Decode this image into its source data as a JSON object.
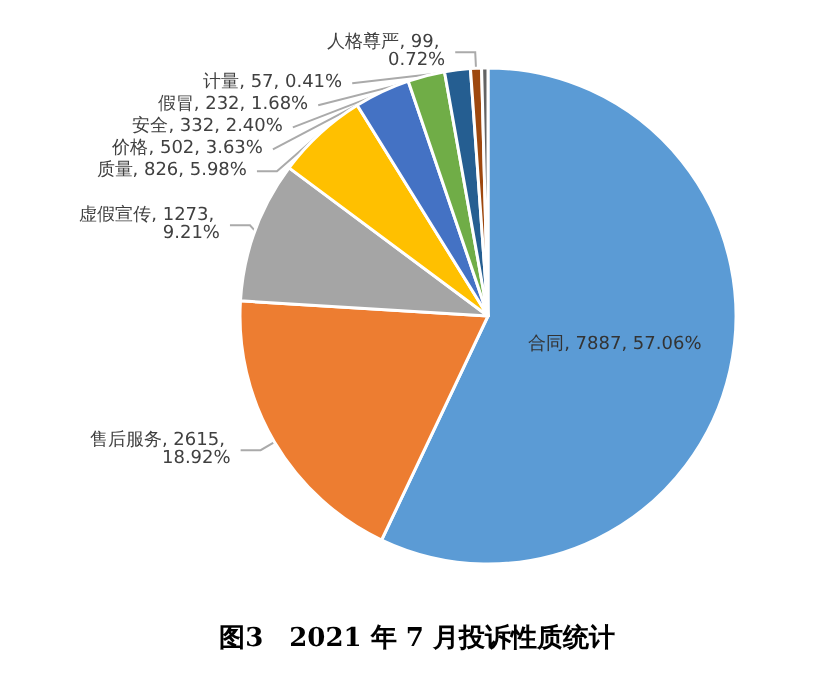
{
  "chart_data": {
    "type": "pie",
    "title": "图3　2021 年 7 月投诉性质统计",
    "categories": [
      "合同",
      "售后服务",
      "虚假宣传",
      "质量",
      "价格",
      "安全",
      "假冒",
      "人格尊严",
      "计量"
    ],
    "values": [
      7887,
      2615,
      1273,
      826,
      502,
      332,
      232,
      99,
      57
    ],
    "value_labels": [
      "7887, 57.06%",
      "2615, 18.92%",
      "1273, 9.21%",
      "826, 5.98%",
      "502, 3.63%",
      "332, 2.40%",
      "232, 1.68%",
      "99, 0.72%",
      "57, 0.41%"
    ],
    "colors": [
      "#5b9bd5",
      "#ed7d31",
      "#a5a5a5",
      "#ffc000",
      "#4472c4",
      "#70ad47",
      "#255e91",
      "#9e480e",
      "#636363"
    ],
    "legend": false
  }
}
